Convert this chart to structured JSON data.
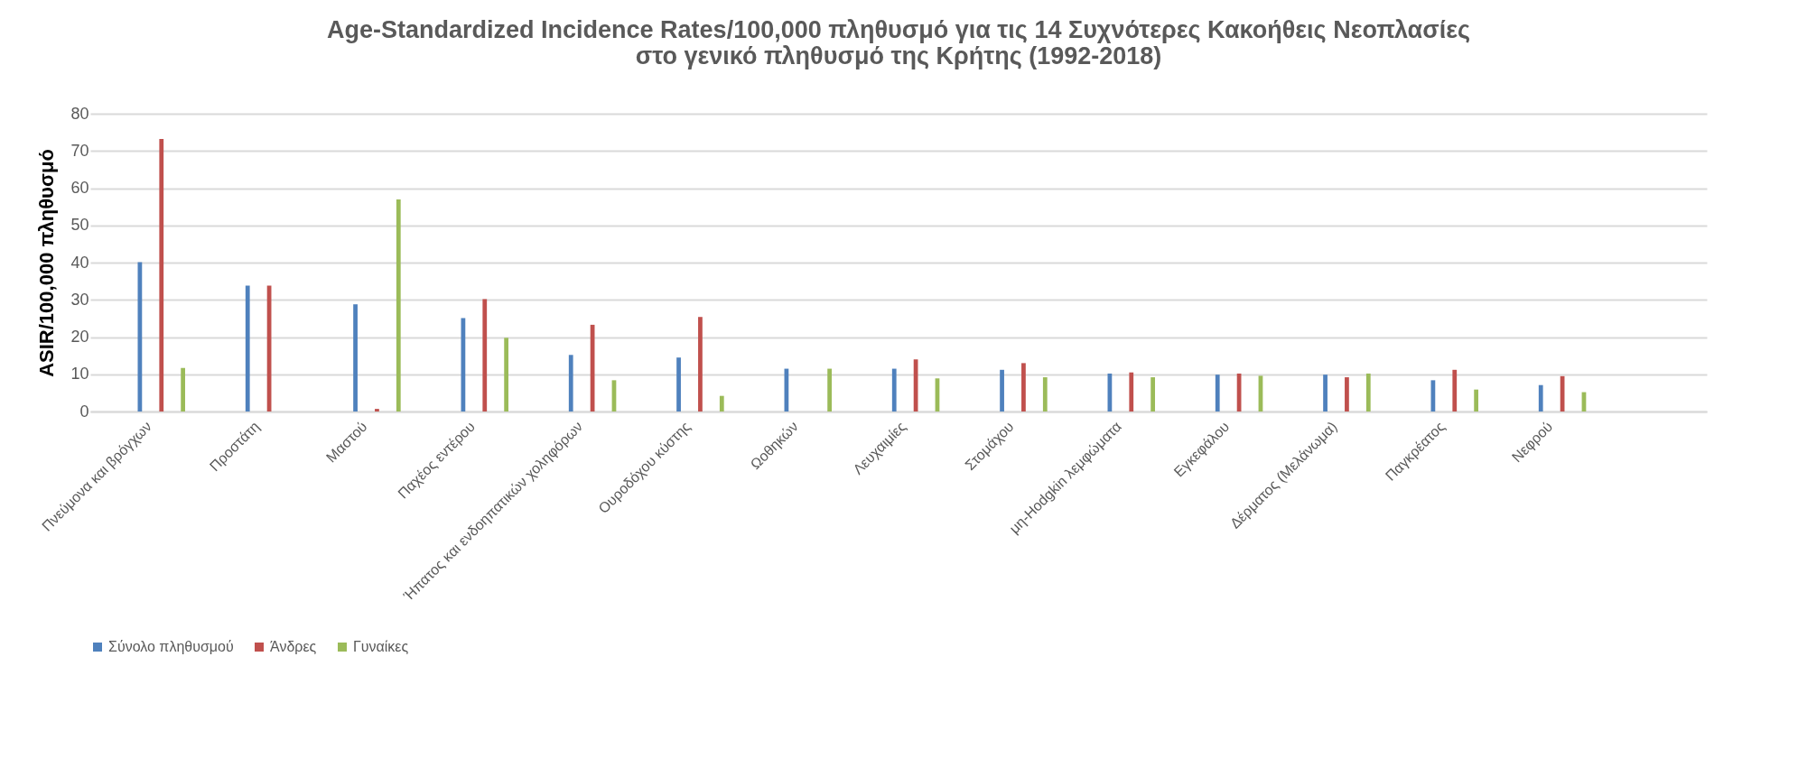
{
  "chart_data": {
    "type": "bar",
    "title": "Age-Standardized Incidence Rates/100,000 πληθυσμό για τις 14 Συχνότερες Κακοήθεις Νεοπλασίες\nστο γενικό πληθυσμό της Κρήτης (1992-2018)",
    "ylabel": "ASIR/100,000 πληθυσμό",
    "categories": [
      "Πνεύμονα και βρόγχων",
      "Προστάτη",
      "Μαστού",
      "Παχέος εντέρου",
      "Ήπατος και ενδοηπατικών χοληφόρων",
      "Ουροδόχου κύστης",
      "Ωοθηκών",
      "Λευχαιμίες",
      "Στομάχου",
      "μη-Hodgkin λεμφώματα",
      "Εγκεφάλου",
      "Δέρματος (Μελάνωμα)",
      "Παγκρέατος",
      "Νεφρού",
      null
    ],
    "series": [
      {
        "name": "Σύνολο πληθυσμού",
        "color": "#4f81bd",
        "values": [
          40.1,
          33.8,
          28.8,
          25.1,
          15.2,
          14.5,
          11.5,
          11.5,
          11.2,
          10.2,
          9.9,
          9.9,
          8.4,
          7.1,
          null
        ]
      },
      {
        "name": "Άνδρες",
        "color": "#c0504d",
        "values": [
          73.2,
          33.8,
          0.7,
          30.2,
          23.3,
          25.4,
          null,
          14.0,
          13.0,
          10.5,
          10.2,
          9.2,
          11.2,
          9.5,
          null
        ]
      },
      {
        "name": "Γυναίκες",
        "color": "#9bbb59",
        "values": [
          11.7,
          null,
          57.0,
          19.8,
          8.4,
          4.2,
          11.5,
          8.9,
          9.2,
          9.2,
          9.6,
          10.2,
          5.9,
          5.2,
          null
        ]
      }
    ],
    "ylim": [
      0,
      80
    ],
    "yticks": [
      0,
      10,
      20,
      30,
      40,
      50,
      60,
      70,
      80
    ],
    "grid": "y",
    "legend": "bottom"
  }
}
